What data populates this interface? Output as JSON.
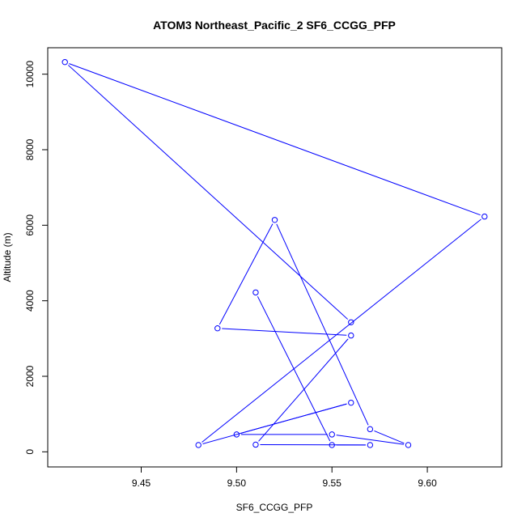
{
  "chart_data": {
    "type": "line",
    "title": "ATOM3 Northeast_Pacific_2 SF6_CCGG_PFP",
    "xlabel": "SF6_CCGG_PFP",
    "ylabel": "Altitude (m)",
    "xlim": [
      9.401,
      9.639
    ],
    "ylim": [
      -400,
      10700
    ],
    "x_ticks": [
      9.45,
      9.5,
      9.55,
      9.6
    ],
    "x_tick_labels": [
      "9.45",
      "9.50",
      "9.55",
      "9.60"
    ],
    "y_ticks": [
      0,
      2000,
      4000,
      6000,
      8000,
      10000
    ],
    "y_tick_labels": [
      "0",
      "2000",
      "4000",
      "6000",
      "8000",
      "10000"
    ],
    "grid": false,
    "series": [
      {
        "color": "#0000ff",
        "marker": "open-circle",
        "points": [
          {
            "x": 9.51,
            "y": 4220
          },
          {
            "x": 9.55,
            "y": 180
          },
          {
            "x": 9.57,
            "y": 180
          },
          {
            "x": 9.51,
            "y": 190
          },
          {
            "x": 9.56,
            "y": 3080
          },
          {
            "x": 9.49,
            "y": 3270
          },
          {
            "x": 9.52,
            "y": 6140
          },
          {
            "x": 9.57,
            "y": 600
          },
          {
            "x": 9.59,
            "y": 180
          },
          {
            "x": 9.55,
            "y": 460
          },
          {
            "x": 9.5,
            "y": 460
          },
          {
            "x": 9.56,
            "y": 1300
          },
          {
            "x": 9.48,
            "y": 180
          },
          {
            "x": 9.63,
            "y": 6230
          },
          {
            "x": 9.41,
            "y": 10320
          },
          {
            "x": 9.56,
            "y": 3430
          }
        ]
      }
    ]
  }
}
